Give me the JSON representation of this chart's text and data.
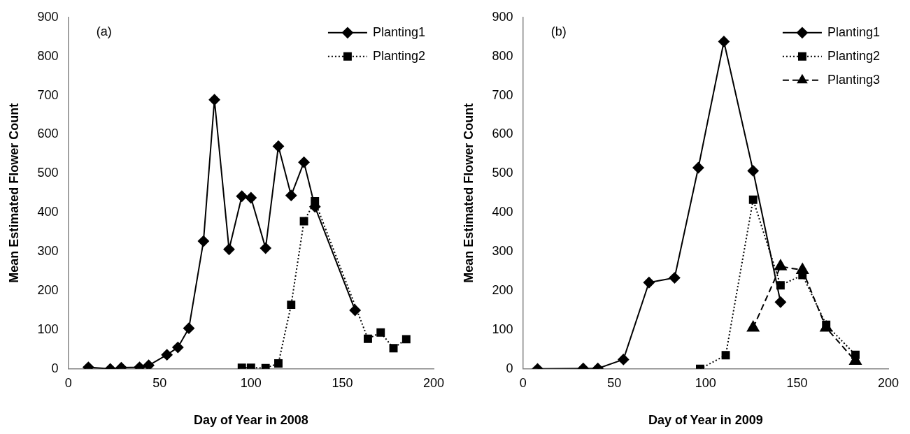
{
  "chart_data": [
    {
      "type": "line",
      "xlabel": "Day of Year in 2008",
      "ylabel": "Mean Estimated Flower Count",
      "annotations": [
        "(a)"
      ],
      "xlim": [
        0,
        200
      ],
      "xticks": [
        0,
        50,
        100,
        150,
        200
      ],
      "ylim": [
        0,
        900
      ],
      "yticks": [
        0,
        100,
        200,
        300,
        400,
        500,
        600,
        700,
        800,
        900
      ],
      "grid": false,
      "legend": "top right",
      "series": [
        {
          "name": "Planting1",
          "color": "#000000",
          "marker": "diamond",
          "line_style": "solid",
          "x": [
            11,
            23,
            29,
            39,
            44,
            54,
            60,
            66,
            74,
            80,
            88,
            95,
            100,
            108,
            115,
            122,
            129,
            135,
            157
          ],
          "values": [
            4,
            0,
            3,
            4,
            9,
            36,
            55,
            104,
            327,
            689,
            306,
            442,
            438,
            309,
            570,
            444,
            529,
            415,
            150
          ]
        },
        {
          "name": "Planting2",
          "color": "#000000",
          "marker": "square",
          "line_style": "dotted",
          "x": [
            95,
            100,
            108,
            115,
            122,
            129,
            135,
            164,
            171,
            178,
            185
          ],
          "values": [
            3,
            3,
            2,
            14,
            164,
            378,
            429,
            77,
            93,
            53,
            76
          ]
        }
      ]
    },
    {
      "type": "line",
      "xlabel": "Day of Year in 2009",
      "ylabel": "Mean Estimated Flower Count",
      "annotations": [
        "(b)"
      ],
      "xlim": [
        0,
        200
      ],
      "xticks": [
        0,
        50,
        100,
        150,
        200
      ],
      "ylim": [
        0,
        900
      ],
      "yticks": [
        0,
        100,
        200,
        300,
        400,
        500,
        600,
        700,
        800,
        900
      ],
      "grid": false,
      "legend": "top right",
      "series": [
        {
          "name": "Planting1",
          "color": "#000000",
          "marker": "diamond",
          "line_style": "solid",
          "x": [
            8,
            33,
            41,
            55,
            69,
            83,
            96,
            110,
            126,
            141
          ],
          "values": [
            0,
            1,
            1,
            24,
            221,
            233,
            515,
            838,
            507,
            171
          ]
        },
        {
          "name": "Planting2",
          "color": "#000000",
          "marker": "square",
          "line_style": "dotted",
          "x": [
            97,
            111,
            126,
            141,
            153,
            166,
            182
          ],
          "values": [
            0,
            35,
            433,
            214,
            240,
            113,
            36
          ]
        },
        {
          "name": "Planting3",
          "color": "#000000",
          "marker": "triangle",
          "line_style": "dashed",
          "x": [
            126,
            141,
            153,
            166,
            182
          ],
          "values": [
            105,
            262,
            253,
            105,
            20
          ]
        }
      ]
    }
  ]
}
